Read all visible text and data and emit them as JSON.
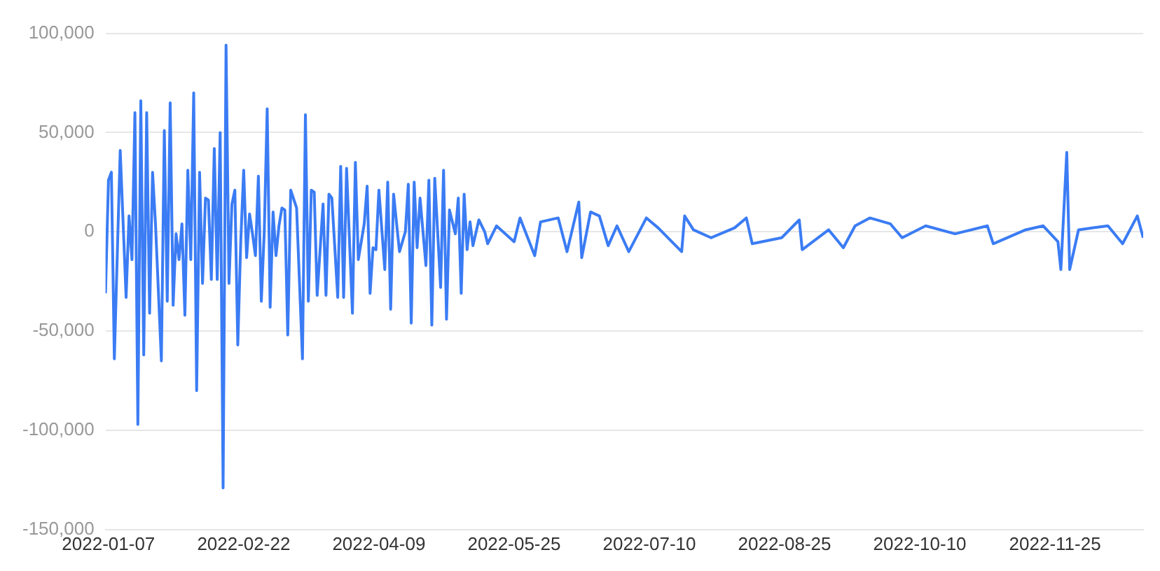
{
  "chart_data": {
    "type": "line",
    "x": [
      "2022-01-06",
      "2022-01-07",
      "2022-01-08",
      "2022-01-09",
      "2022-01-11",
      "2022-01-13",
      "2022-01-14",
      "2022-01-15",
      "2022-01-16",
      "2022-01-17",
      "2022-01-18",
      "2022-01-19",
      "2022-01-20",
      "2022-01-21",
      "2022-01-22",
      "2022-01-23",
      "2022-01-25",
      "2022-01-26",
      "2022-01-27",
      "2022-01-28",
      "2022-01-29",
      "2022-01-30",
      "2022-01-31",
      "2022-02-01",
      "2022-02-02",
      "2022-02-03",
      "2022-02-04",
      "2022-02-05",
      "2022-02-06",
      "2022-02-07",
      "2022-02-08",
      "2022-02-09",
      "2022-02-10",
      "2022-02-11",
      "2022-02-12",
      "2022-02-13",
      "2022-02-14",
      "2022-02-15",
      "2022-02-16",
      "2022-02-17",
      "2022-02-18",
      "2022-02-19",
      "2022-02-20",
      "2022-02-21",
      "2022-02-22",
      "2022-02-23",
      "2022-02-24",
      "2022-02-25",
      "2022-02-26",
      "2022-02-27",
      "2022-02-28",
      "2022-03-01",
      "2022-03-02",
      "2022-03-03",
      "2022-03-04",
      "2022-03-05",
      "2022-03-06",
      "2022-03-07",
      "2022-03-08",
      "2022-03-09",
      "2022-03-10",
      "2022-03-12",
      "2022-03-14",
      "2022-03-15",
      "2022-03-16",
      "2022-03-17",
      "2022-03-18",
      "2022-03-19",
      "2022-03-21",
      "2022-03-22",
      "2022-03-23",
      "2022-03-24",
      "2022-03-26",
      "2022-03-27",
      "2022-03-28",
      "2022-03-29",
      "2022-03-31",
      "2022-04-01",
      "2022-04-02",
      "2022-04-04",
      "2022-04-05",
      "2022-04-06",
      "2022-04-07",
      "2022-04-08",
      "2022-04-09",
      "2022-04-11",
      "2022-04-12",
      "2022-04-13",
      "2022-04-14",
      "2022-04-16",
      "2022-04-18",
      "2022-04-19",
      "2022-04-20",
      "2022-04-21",
      "2022-04-22",
      "2022-04-23",
      "2022-04-25",
      "2022-04-26",
      "2022-04-27",
      "2022-04-28",
      "2022-04-30",
      "2022-05-01",
      "2022-05-02",
      "2022-05-03",
      "2022-05-05",
      "2022-05-06",
      "2022-05-07",
      "2022-05-08",
      "2022-05-09",
      "2022-05-10",
      "2022-05-11",
      "2022-05-13",
      "2022-05-15",
      "2022-05-16",
      "2022-05-19",
      "2022-05-25",
      "2022-05-27",
      "2022-06-01",
      "2022-06-03",
      "2022-06-09",
      "2022-06-12",
      "2022-06-16",
      "2022-06-17",
      "2022-06-20",
      "2022-06-23",
      "2022-06-26",
      "2022-06-29",
      "2022-07-03",
      "2022-07-09",
      "2022-07-13",
      "2022-07-21",
      "2022-07-22",
      "2022-07-25",
      "2022-07-31",
      "2022-08-08",
      "2022-08-12",
      "2022-08-14",
      "2022-08-24",
      "2022-08-30",
      "2022-08-31",
      "2022-09-09",
      "2022-09-14",
      "2022-09-18",
      "2022-09-23",
      "2022-09-30",
      "2022-10-04",
      "2022-10-12",
      "2022-10-22",
      "2022-11-02",
      "2022-11-04",
      "2022-11-15",
      "2022-11-21",
      "2022-11-26",
      "2022-11-27",
      "2022-11-29",
      "2022-11-30",
      "2022-12-03",
      "2022-12-08",
      "2022-12-13",
      "2022-12-18",
      "2022-12-23",
      "2022-12-25"
    ],
    "series": [
      {
        "color": "#3b7cf4",
        "values": [
          -31000,
          26000,
          30000,
          -64000,
          41000,
          -33000,
          8000,
          -14000,
          60000,
          -97000,
          66000,
          -62000,
          60000,
          -41000,
          30000,
          4000,
          -65000,
          51000,
          -35000,
          65000,
          -37000,
          -1000,
          -14000,
          4000,
          -42000,
          31000,
          -14000,
          70000,
          -80000,
          30000,
          -26000,
          17000,
          16000,
          -24000,
          42000,
          -24000,
          50000,
          -129000,
          94000,
          -26000,
          14000,
          21000,
          -57000,
          -5000,
          31000,
          -13000,
          9000,
          -1000,
          -12000,
          28000,
          -35000,
          0,
          62000,
          -38000,
          10000,
          -12000,
          3000,
          12000,
          11000,
          -52000,
          21000,
          12000,
          -64000,
          59000,
          -35000,
          21000,
          20000,
          -32000,
          14000,
          -32000,
          19000,
          17000,
          -33000,
          33000,
          -33000,
          32000,
          -41000,
          35000,
          -14000,
          4000,
          23000,
          -31000,
          -8000,
          -9000,
          21000,
          -19000,
          25000,
          -39000,
          19000,
          -10000,
          0,
          24000,
          -46000,
          25000,
          -8000,
          17000,
          -17000,
          26000,
          -47000,
          27000,
          -28000,
          31000,
          -44000,
          11000,
          -1000,
          17000,
          -31000,
          19000,
          -9000,
          5000,
          -7000,
          6000,
          0,
          -6000,
          3000,
          -5000,
          7000,
          -12000,
          5000,
          7000,
          -10000,
          15000,
          -13000,
          10000,
          8000,
          -7000,
          3000,
          -10000,
          7000,
          2000,
          -10000,
          8000,
          1000,
          -3000,
          2000,
          7000,
          -6000,
          -3000,
          6000,
          -9000,
          1000,
          -8000,
          3000,
          7000,
          4000,
          -3000,
          3000,
          -1000,
          3000,
          -6000,
          1000,
          3000,
          -5000,
          -19000,
          40000,
          -19000,
          1000,
          2000,
          3000,
          -6000,
          8000,
          -3000
        ]
      }
    ],
    "xlim": [
      "2022-01-06",
      "2022-12-25"
    ],
    "xticks": [
      "2022-01-07",
      "2022-02-22",
      "2022-04-09",
      "2022-05-25",
      "2022-07-10",
      "2022-08-25",
      "2022-10-10",
      "2022-11-25"
    ],
    "ylim": [
      -150000,
      100000
    ],
    "yticks": [
      {
        "value": -150000,
        "label": "-150,000"
      },
      {
        "value": -100000,
        "label": "-100,000"
      },
      {
        "value": -50000,
        "label": "-50,000"
      },
      0,
      {
        "value": 50000,
        "label": "50,000"
      },
      {
        "value": 100000,
        "label": "100,000"
      }
    ],
    "grid": "y",
    "marker": "none",
    "line_style": "solid",
    "legend": false
  }
}
